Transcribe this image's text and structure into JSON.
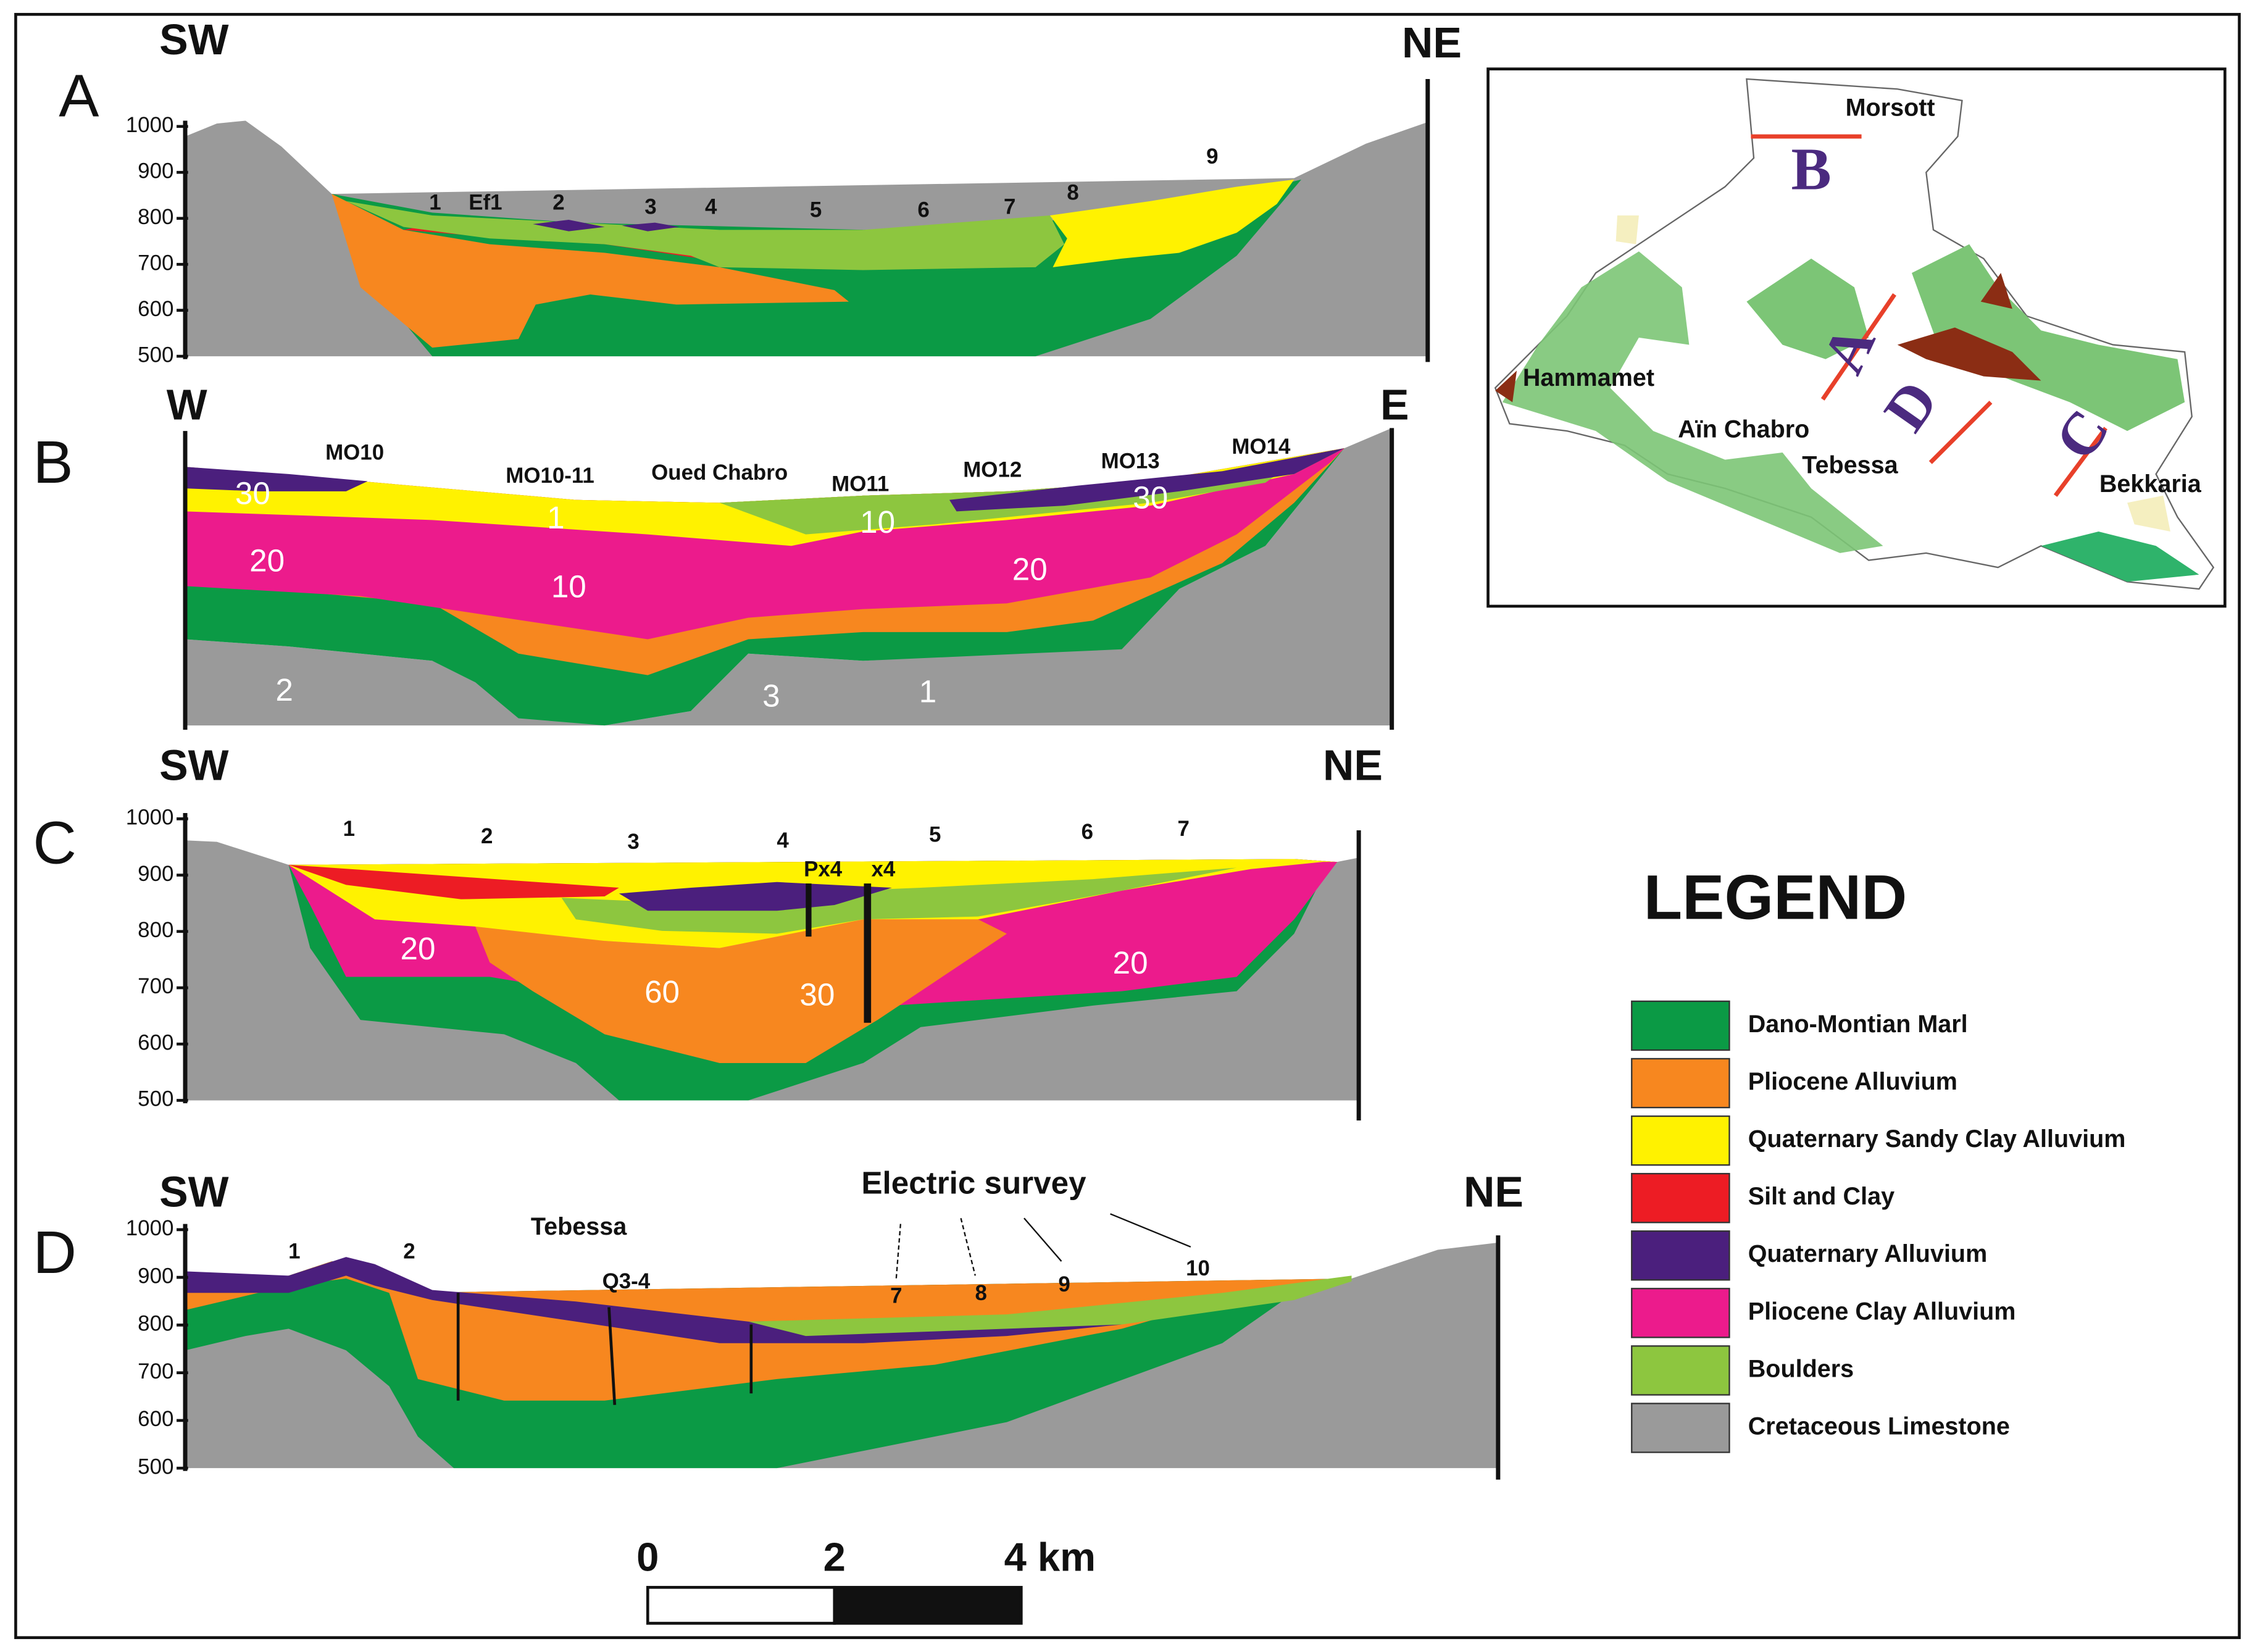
{
  "sections": [
    {
      "label": "A",
      "left": "SW",
      "right": "NE",
      "ticks": [
        1000,
        900,
        800,
        700,
        600,
        500
      ],
      "points": [
        "1",
        "Ef1",
        "2",
        "3",
        "4",
        "5",
        "6",
        "7",
        "8",
        "9"
      ]
    },
    {
      "label": "B",
      "left": "W",
      "right": "E",
      "points": [
        "MO10",
        "MO10-11",
        "Oued Chabro",
        "MO11",
        "MO12",
        "MO13",
        "MO14"
      ],
      "layer_values": [
        "30",
        "1",
        "10",
        "30",
        "20",
        "10",
        "20",
        "2",
        "3",
        "1"
      ]
    },
    {
      "label": "C",
      "left": "SW",
      "right": "NE",
      "ticks": [
        1000,
        900,
        800,
        700,
        600,
        500
      ],
      "points": [
        "1",
        "2",
        "3",
        "4",
        "Px4",
        "x4",
        "5",
        "6",
        "7"
      ],
      "layer_values": [
        "20",
        "60",
        "30",
        "20"
      ]
    },
    {
      "label": "D",
      "left": "SW",
      "right": "NE",
      "ticks": [
        1000,
        900,
        800,
        700,
        600,
        500
      ],
      "points": [
        "1",
        "2",
        "Tebessa",
        "Q3-4",
        "Electric survey",
        "7",
        "8",
        "9",
        "10"
      ]
    }
  ],
  "map": {
    "sections": [
      "B",
      "A",
      "D",
      "C"
    ],
    "places": [
      "Morsott",
      "Hammamet",
      "Aïn Chabro",
      "Tebessa",
      "Bekkaria"
    ]
  },
  "legend": {
    "title": "LEGEND",
    "items": [
      "Dano-Montian Marl",
      "Pliocene Alluvium",
      "Quaternary Sandy Clay Alluvium",
      "Silt and Clay",
      "Quaternary Alluvium",
      "Pliocene Clay Alluvium",
      "Boulders",
      "Cretaceous Limestone"
    ]
  },
  "scale": {
    "labels": [
      "0",
      "2",
      "4 km"
    ]
  }
}
